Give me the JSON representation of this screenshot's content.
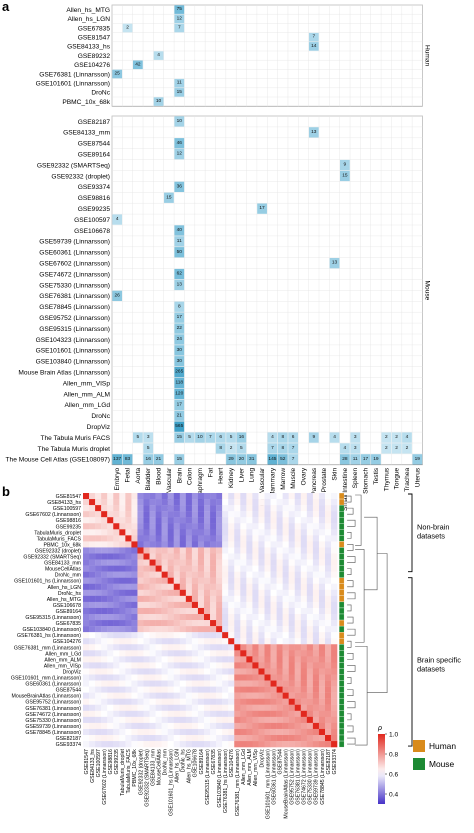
{
  "figure": {
    "panel_a": "a",
    "panel_b": "b"
  },
  "chart_data": [
    {
      "type": "heatmap",
      "facets": [
        "Human",
        "Mouse"
      ],
      "columns": [
        "Embryo",
        "Fetal",
        "Aorta",
        "Bladder",
        "Blood",
        "Brain Vascular",
        "Brain",
        "Colon",
        "Diaphragm",
        "Fat",
        "Heart",
        "Kidney",
        "Liver",
        "Lung",
        "Lung Vascular",
        "Mammary",
        "Marrow",
        "Muscle",
        "Ovary",
        "Pancreas",
        "Prostate",
        "Skin",
        "Small Intestine",
        "Spleen",
        "Stomach",
        "Testis",
        "Thymus",
        "Tongue",
        "Trachea",
        "Uterus"
      ],
      "human_rows": [
        "Allen_hs_MTG",
        "Allen_hs_LGN",
        "GSE67835",
        "GSE81547",
        "GSE84133_hs",
        "GSE89232",
        "GSE104276",
        "GSE76381 (Linnarsson)",
        "GSE101601 (Linnarsson)",
        "DroNc",
        "PBMC_10x_68k"
      ],
      "mouse_rows": [
        "GSE82187",
        "GSE84133_mm",
        "GSE87544",
        "GSE89164",
        "GSE92332 (SMARTSeq)",
        "GSE92332 (droplet)",
        "GSE93374",
        "GSE98816",
        "GSE99235",
        "GSE100597",
        "GSE106678",
        "GSE59739 (Linnarsson)",
        "GSE60361 (Linnarsson)",
        "GSE67602 (Linnarsson)",
        "GSE74672 (Linnarsson)",
        "GSE75330 (Linnarsson)",
        "GSE76381 (Linnarsson)",
        "GSE78845 (Linnarsson)",
        "GSE95752 (Linnarsson)",
        "GSE95315 (Linnarsson)",
        "GSE104323 (Linnarsson)",
        "GSE101601 (Linnarsson)",
        "GSE103840 (Linnarsson)",
        "Mouse Brain Atlas (Linnarsson)",
        "Allen_mm_VISp",
        "Allen_mm_ALM",
        "Allen_mm_LGd",
        "DroNc",
        "DropViz",
        "The Tabula Muris FACS",
        "The Tabula Muris droplet",
        "The Mouse Cell Atlas (GSE108097)"
      ],
      "human_cells": [
        [
          "Allen_hs_MTG",
          "Brain",
          75
        ],
        [
          "Allen_hs_LGN",
          "Brain",
          12
        ],
        [
          "GSE67835",
          "Fetal",
          2
        ],
        [
          "GSE67835",
          "Brain",
          7
        ],
        [
          "GSE81547",
          "Pancreas",
          7
        ],
        [
          "GSE84133_hs",
          "Pancreas",
          14
        ],
        [
          "GSE89232",
          "Blood",
          4
        ],
        [
          "GSE104276",
          "Aorta",
          42
        ],
        [
          "GSE76381 (Linnarsson)",
          "Embryo",
          25
        ],
        [
          "GSE101601 (Linnarsson)",
          "Brain",
          11
        ],
        [
          "DroNc",
          "Brain",
          15
        ],
        [
          "PBMC_10x_68k",
          "Blood",
          10
        ]
      ],
      "mouse_cells": [
        [
          "GSE82187",
          "Brain",
          10
        ],
        [
          "GSE84133_mm",
          "Pancreas",
          13
        ],
        [
          "GSE87544",
          "Brain",
          46
        ],
        [
          "GSE89164",
          "Brain",
          12
        ],
        [
          "GSE92332 (SMARTSeq)",
          "Small Intestine",
          9
        ],
        [
          "GSE92332 (droplet)",
          "Small Intestine",
          15
        ],
        [
          "GSE93374",
          "Brain",
          36
        ],
        [
          "GSE98816",
          "Brain Vascular",
          15
        ],
        [
          "GSE99235",
          "Lung Vascular",
          17
        ],
        [
          "GSE100597",
          "Embryo",
          4
        ],
        [
          "GSE106678",
          "Brain",
          40
        ],
        [
          "GSE59739 (Linnarsson)",
          "Brain",
          11
        ],
        [
          "GSE60361 (Linnarsson)",
          "Brain",
          50
        ],
        [
          "GSE67602 (Linnarsson)",
          "Skin",
          13
        ],
        [
          "GSE74672 (Linnarsson)",
          "Brain",
          62
        ],
        [
          "GSE75330 (Linnarsson)",
          "Brain",
          13
        ],
        [
          "GSE76381 (Linnarsson)",
          "Embryo",
          26
        ],
        [
          "GSE78845 (Linnarsson)",
          "Brain",
          8
        ],
        [
          "GSE95752 (Linnarsson)",
          "Brain",
          17
        ],
        [
          "GSE95315 (Linnarsson)",
          "Brain",
          22
        ],
        [
          "GSE104323 (Linnarsson)",
          "Brain",
          24
        ],
        [
          "GSE101601 (Linnarsson)",
          "Brain",
          30
        ],
        [
          "GSE103840 (Linnarsson)",
          "Brain",
          30
        ],
        [
          "Mouse Brain Atlas (Linnarsson)",
          "Brain",
          265
        ],
        [
          "Allen_mm_VISp",
          "Brain",
          118
        ],
        [
          "Allen_mm_ALM",
          "Brain",
          120
        ],
        [
          "Allen_mm_LGd",
          "Brain",
          17
        ],
        [
          "DroNc",
          "Brain",
          21
        ],
        [
          "DropViz",
          "Brain",
          565
        ],
        [
          "The Tabula Muris FACS",
          "Aorta",
          5
        ],
        [
          "The Tabula Muris FACS",
          "Bladder",
          3
        ],
        [
          "The Tabula Muris FACS",
          "Brain",
          15
        ],
        [
          "The Tabula Muris FACS",
          "Colon",
          5
        ],
        [
          "The Tabula Muris FACS",
          "Diaphragm",
          10
        ],
        [
          "The Tabula Muris FACS",
          "Fat",
          7
        ],
        [
          "The Tabula Muris FACS",
          "Heart",
          6
        ],
        [
          "The Tabula Muris FACS",
          "Kidney",
          5
        ],
        [
          "The Tabula Muris FACS",
          "Liver",
          16
        ],
        [
          "The Tabula Muris FACS",
          "Mammary",
          4
        ],
        [
          "The Tabula Muris FACS",
          "Marrow",
          8
        ],
        [
          "The Tabula Muris FACS",
          "Muscle",
          6
        ],
        [
          "The Tabula Muris FACS",
          "Pancreas",
          9
        ],
        [
          "The Tabula Muris FACS",
          "Skin",
          4
        ],
        [
          "The Tabula Muris FACS",
          "Spleen",
          3
        ],
        [
          "The Tabula Muris FACS",
          "Thymus",
          2
        ],
        [
          "The Tabula Muris FACS",
          "Tongue",
          2
        ],
        [
          "The Tabula Muris FACS",
          "Trachea",
          4
        ],
        [
          "The Tabula Muris droplet",
          "Bladder",
          5
        ],
        [
          "The Tabula Muris droplet",
          "Heart",
          8
        ],
        [
          "The Tabula Muris droplet",
          "Kidney",
          2
        ],
        [
          "The Tabula Muris droplet",
          "Liver",
          5
        ],
        [
          "The Tabula Muris droplet",
          "Mammary",
          7
        ],
        [
          "The Tabula Muris droplet",
          "Marrow",
          8
        ],
        [
          "The Tabula Muris droplet",
          "Muscle",
          7
        ],
        [
          "The Tabula Muris droplet",
          "Small Intestine",
          4
        ],
        [
          "The Tabula Muris droplet",
          "Spleen",
          3
        ],
        [
          "The Tabula Muris droplet",
          "Thymus",
          2
        ],
        [
          "The Tabula Muris droplet",
          "Tongue",
          2
        ],
        [
          "The Tabula Muris droplet",
          "Trachea",
          2
        ],
        [
          "The Mouse Cell Atlas (GSE108097)",
          "Embryo",
          137
        ],
        [
          "The Mouse Cell Atlas (GSE108097)",
          "Fetal",
          83
        ],
        [
          "The Mouse Cell Atlas (GSE108097)",
          "Bladder",
          16
        ],
        [
          "The Mouse Cell Atlas (GSE108097)",
          "Blood",
          21
        ],
        [
          "The Mouse Cell Atlas (GSE108097)",
          "Brain",
          15
        ],
        [
          "The Mouse Cell Atlas (GSE108097)",
          "Kidney",
          29
        ],
        [
          "The Mouse Cell Atlas (GSE108097)",
          "Liver",
          20
        ],
        [
          "The Mouse Cell Atlas (GSE108097)",
          "Lung",
          31
        ],
        [
          "The Mouse Cell Atlas (GSE108097)",
          "Mammary",
          145
        ],
        [
          "The Mouse Cell Atlas (GSE108097)",
          "Marrow",
          52
        ],
        [
          "The Mouse Cell Atlas (GSE108097)",
          "Muscle",
          7
        ],
        [
          "The Mouse Cell Atlas (GSE108097)",
          "Small Intestine",
          28
        ],
        [
          "The Mouse Cell Atlas (GSE108097)",
          "Spleen",
          11
        ],
        [
          "The Mouse Cell Atlas (GSE108097)",
          "Stomach",
          17
        ],
        [
          "The Mouse Cell Atlas (GSE108097)",
          "Testis",
          19
        ],
        [
          "The Mouse Cell Atlas (GSE108097)",
          "Uterus",
          19
        ]
      ]
    },
    {
      "type": "heatmap",
      "rows": [
        "GSE81547",
        "GSE84133_hs",
        "GSE100597",
        "GSE67602 (Linnarsson)",
        "GSE98816",
        "GSE99235",
        "TabulaMuris_droplet",
        "TabulaMuris_FACS",
        "PBMC_10x_68k",
        "GSE92332 (droplet)",
        "GSE92332 (SMARTSeq)",
        "GSE84133_mm",
        "MouseCellAtlas",
        "DroNc_mm",
        "GSE101601_hs (Linnarsson)",
        "Allen_hs_LGN",
        "DroNc_hs",
        "Allen_hs_MTG",
        "GSE106678",
        "GSE89164",
        "GSE95315 (Linnarsson)",
        "GSE67835",
        "GSE103840 (Linnarsson)",
        "GSE76381_hs (Linnarsson)",
        "GSE104276",
        "GSE76381_mm (Linnarsson)",
        "Allen_mm_LGd",
        "Allen_mm_ALM",
        "Allen_mm_VISp",
        "DropViz",
        "GSE101601_mm (Linnarsson)",
        "GSE60361 (Linnarsson)",
        "GSE87544",
        "MouseBrainAtlas (Linnarsson)",
        "GSE95752 (Linnarsson)",
        "GSE76381 (Linnarsson)",
        "GSE74672 (Linnarsson)",
        "GSE75330 (Linnarsson)",
        "GSE59739 (Linnarsson)",
        "GSE78845 (Linnarsson)",
        "GSE82187",
        "GSE93374"
      ],
      "species": [
        "Human",
        "Human",
        "Mouse",
        "Mouse",
        "Mouse",
        "Mouse",
        "Mouse",
        "Mouse",
        "Human",
        "Mouse",
        "Mouse",
        "Mouse",
        "Mouse",
        "Mouse",
        "Human",
        "Human",
        "Human",
        "Human",
        "Mouse",
        "Mouse",
        "Mouse",
        "Human",
        "Mouse",
        "Human",
        "Human",
        "Mouse",
        "Mouse",
        "Mouse",
        "Mouse",
        "Mouse",
        "Mouse",
        "Mouse",
        "Mouse",
        "Mouse",
        "Mouse",
        "Mouse",
        "Mouse",
        "Mouse",
        "Mouse",
        "Mouse",
        "Mouse",
        "Mouse"
      ],
      "colorbar": {
        "label": "ρ",
        "ticks": [
          1.0,
          0.8,
          0.6,
          0.4
        ],
        "tick_labels": [
          "1.0",
          "0.8",
          "0.6",
          "0.4"
        ],
        "range": [
          0.3,
          1.0
        ]
      },
      "legend": [
        {
          "label": "Human",
          "color": "#d98b1c"
        },
        {
          "label": "Mouse",
          "color": "#1d8a33"
        }
      ],
      "annotations": [
        "Non-brain datasets",
        "Brain specific datasets"
      ]
    }
  ]
}
